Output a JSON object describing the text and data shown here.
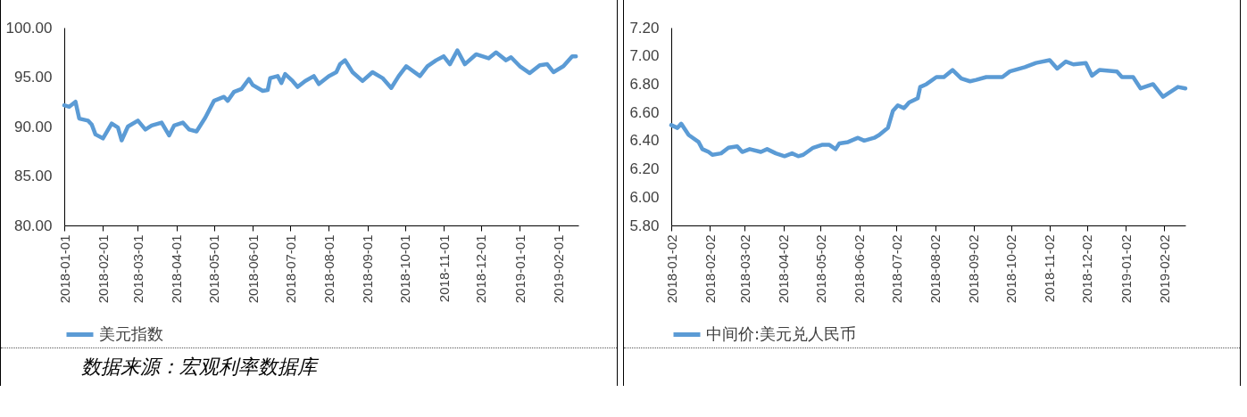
{
  "chart_data": [
    {
      "type": "line",
      "grid": false,
      "legend": "bottom",
      "line_style": "solid",
      "marker": "none",
      "x": [
        "2018-01-01",
        "2018-01-05",
        "2018-01-10",
        "2018-01-13",
        "2018-01-20",
        "2018-01-23",
        "2018-01-26",
        "2018-02-01",
        "2018-02-08",
        "2018-02-13",
        "2018-02-16",
        "2018-02-21",
        "2018-03-01",
        "2018-03-07",
        "2018-03-12",
        "2018-03-20",
        "2018-03-26",
        "2018-03-30",
        "2018-04-06",
        "2018-04-11",
        "2018-04-17",
        "2018-04-24",
        "2018-05-01",
        "2018-05-09",
        "2018-05-12",
        "2018-05-17",
        "2018-05-23",
        "2018-05-29",
        "2018-06-01",
        "2018-06-09",
        "2018-06-13",
        "2018-06-15",
        "2018-06-21",
        "2018-06-24",
        "2018-06-27",
        "2018-07-03",
        "2018-07-07",
        "2018-07-13",
        "2018-07-20",
        "2018-07-24",
        "2018-08-01",
        "2018-08-07",
        "2018-08-10",
        "2018-08-14",
        "2018-08-20",
        "2018-08-28",
        "2018-09-05",
        "2018-09-13",
        "2018-09-20",
        "2018-09-26",
        "2018-10-02",
        "2018-10-13",
        "2018-10-19",
        "2018-10-26",
        "2018-11-01",
        "2018-11-06",
        "2018-11-12",
        "2018-11-18",
        "2018-11-27",
        "2018-12-07",
        "2018-12-13",
        "2018-12-21",
        "2018-12-25",
        "2019-01-01",
        "2019-01-09",
        "2019-01-17",
        "2019-01-23",
        "2019-01-28",
        "2019-02-05",
        "2019-02-12",
        "2019-02-15"
      ],
      "series": [
        {
          "name": "美元指数",
          "color": "#5b9bd5",
          "values": [
            92.15,
            92.0,
            92.5,
            90.8,
            90.6,
            90.2,
            89.2,
            88.8,
            90.3,
            89.9,
            88.6,
            90.0,
            90.6,
            89.7,
            90.1,
            90.4,
            89.1,
            90.1,
            90.4,
            89.7,
            89.5,
            90.9,
            92.6,
            93.0,
            92.6,
            93.5,
            93.8,
            94.8,
            94.2,
            93.6,
            93.7,
            94.9,
            95.1,
            94.4,
            95.3,
            94.6,
            94.0,
            94.6,
            95.1,
            94.3,
            95.1,
            95.5,
            96.3,
            96.7,
            95.5,
            94.6,
            95.5,
            94.9,
            93.9,
            95.1,
            96.1,
            95.1,
            96.1,
            96.7,
            97.1,
            96.3,
            97.7,
            96.3,
            97.3,
            96.9,
            97.5,
            96.7,
            97.0,
            96.1,
            95.4,
            96.2,
            96.3,
            95.5,
            96.1,
            97.1,
            97.1
          ]
        }
      ],
      "xlim": [
        "2018-01-01",
        "2019-02-17"
      ],
      "xticks": [
        "2018-01-01",
        "2018-02-01",
        "2018-03-01",
        "2018-04-01",
        "2018-05-01",
        "2018-06-01",
        "2018-07-01",
        "2018-08-01",
        "2018-09-01",
        "2018-10-01",
        "2018-11-01",
        "2018-12-01",
        "2019-01-01",
        "2019-02-01"
      ],
      "ylim": [
        80,
        100
      ],
      "yticks": [
        {
          "value": 80,
          "label": "80.00"
        },
        {
          "value": 85,
          "label": "85.00"
        },
        {
          "value": 90,
          "label": "90.00"
        },
        {
          "value": 95,
          "label": "95.00"
        },
        {
          "value": 100,
          "label": "100.00"
        }
      ],
      "annotations": [
        "数据来源：宏观利率数据库"
      ]
    },
    {
      "type": "line",
      "grid": false,
      "legend": "bottom",
      "line_style": "solid",
      "marker": "none",
      "x": [
        "2018-01-02",
        "2018-01-07",
        "2018-01-10",
        "2018-01-16",
        "2018-01-24",
        "2018-01-27",
        "2018-02-01",
        "2018-02-04",
        "2018-02-11",
        "2018-02-17",
        "2018-02-24",
        "2018-02-28",
        "2018-03-06",
        "2018-03-15",
        "2018-03-20",
        "2018-03-27",
        "2018-04-03",
        "2018-04-09",
        "2018-04-14",
        "2018-04-18",
        "2018-04-26",
        "2018-05-03",
        "2018-05-09",
        "2018-05-14",
        "2018-05-17",
        "2018-05-24",
        "2018-06-01",
        "2018-06-06",
        "2018-06-14",
        "2018-06-18",
        "2018-06-25",
        "2018-06-29",
        "2018-07-03",
        "2018-07-08",
        "2018-07-12",
        "2018-07-19",
        "2018-07-21",
        "2018-07-26",
        "2018-08-03",
        "2018-08-09",
        "2018-08-16",
        "2018-08-23",
        "2018-08-30",
        "2018-09-04",
        "2018-09-12",
        "2018-09-25",
        "2018-10-01",
        "2018-10-13",
        "2018-10-22",
        "2018-11-02",
        "2018-11-08",
        "2018-11-15",
        "2018-11-21",
        "2018-12-01",
        "2018-12-06",
        "2018-12-12",
        "2018-12-26",
        "2018-12-30",
        "2019-01-08",
        "2019-01-14",
        "2019-01-24",
        "2019-02-01",
        "2019-02-13",
        "2019-02-19"
      ],
      "series": [
        {
          "name": "中间价:美元兑人民币",
          "color": "#5b9bd5",
          "values": [
            6.51,
            6.49,
            6.52,
            6.44,
            6.39,
            6.34,
            6.32,
            6.3,
            6.31,
            6.35,
            6.36,
            6.32,
            6.34,
            6.32,
            6.34,
            6.31,
            6.29,
            6.31,
            6.29,
            6.3,
            6.35,
            6.37,
            6.37,
            6.34,
            6.38,
            6.39,
            6.42,
            6.4,
            6.42,
            6.44,
            6.49,
            6.61,
            6.65,
            6.63,
            6.67,
            6.7,
            6.78,
            6.8,
            6.85,
            6.85,
            6.9,
            6.84,
            6.82,
            6.83,
            6.85,
            6.85,
            6.89,
            6.92,
            6.95,
            6.97,
            6.91,
            6.96,
            6.94,
            6.95,
            6.86,
            6.9,
            6.89,
            6.85,
            6.85,
            6.77,
            6.8,
            6.71,
            6.78,
            6.77
          ]
        }
      ],
      "xlim": [
        "2018-01-02",
        "2019-02-19"
      ],
      "xticks": [
        "2018-01-02",
        "2018-02-02",
        "2018-03-02",
        "2018-04-02",
        "2018-05-02",
        "2018-06-02",
        "2018-07-02",
        "2018-08-02",
        "2018-09-02",
        "2018-10-02",
        "2018-11-02",
        "2018-12-02",
        "2019-01-02",
        "2019-02-02"
      ],
      "ylim": [
        5.8,
        7.2
      ],
      "yticks": [
        {
          "value": 5.8,
          "label": "5.80"
        },
        {
          "value": 6.0,
          "label": "6.00"
        },
        {
          "value": 6.2,
          "label": "6.20"
        },
        {
          "value": 6.4,
          "label": "6.40"
        },
        {
          "value": 6.6,
          "label": "6.60"
        },
        {
          "value": 6.8,
          "label": "6.80"
        },
        {
          "value": 7.0,
          "label": "7.00"
        },
        {
          "value": 7.2,
          "label": "7.20"
        }
      ]
    }
  ]
}
